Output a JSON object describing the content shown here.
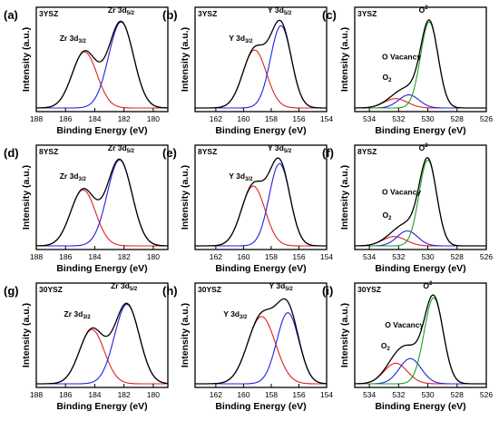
{
  "chart_data": [
    {
      "panel": "(a)",
      "sample": "3YSZ",
      "type": "line",
      "xlabel": "Binding Energy (eV)",
      "ylabel": "Intensity (a.u.)",
      "xlim": [
        188,
        179
      ],
      "xticks": [
        188,
        186,
        184,
        182,
        180
      ],
      "series": [
        {
          "name": "Zr 3d3/2",
          "color": "#e02020",
          "peaks": [
            {
              "center": 184.7,
              "sigma": 0.85,
              "height": 0.6
            }
          ]
        },
        {
          "name": "Zr 3d5/2",
          "color": "#2020e0",
          "peaks": [
            {
              "center": 182.2,
              "sigma": 0.85,
              "height": 0.92
            }
          ]
        },
        {
          "name": "",
          "color": "#000000",
          "sum": true
        }
      ],
      "annotations": [
        {
          "name": "Zr 3d",
          "sub": "3/2",
          "x": 185.5,
          "y": 0.72
        },
        {
          "name": "Zr 3d",
          "sub": "5/2",
          "x": 182.2,
          "y": 1.02
        }
      ]
    },
    {
      "panel": "(b)",
      "sample": "3YSZ",
      "type": "line",
      "xlabel": "Binding Energy (eV)",
      "ylabel": "Intensity (a.u.)",
      "xlim": [
        163.5,
        154
      ],
      "xticks": [
        162,
        160,
        158,
        156,
        154
      ],
      "series": [
        {
          "name": "Y 3d3/2",
          "color": "#e02020",
          "peaks": [
            {
              "center": 159.2,
              "sigma": 0.85,
              "height": 0.62
            }
          ]
        },
        {
          "name": "Y 3d5/2",
          "color": "#2020e0",
          "peaks": [
            {
              "center": 157.3,
              "sigma": 0.75,
              "height": 0.88
            }
          ]
        },
        {
          "name": "",
          "color": "#000000",
          "sum": true
        }
      ],
      "annotations": [
        {
          "name": "Y 3d",
          "sub": "3/2",
          "x": 160.2,
          "y": 0.72
        },
        {
          "name": "Y 3d",
          "sub": "5/2",
          "x": 157.4,
          "y": 1.02
        }
      ]
    },
    {
      "panel": "(c)",
      "sample": "3YSZ",
      "type": "line",
      "xlabel": "Binding Energy (eV)",
      "ylabel": "Intensity (a.u.)",
      "xlim": [
        535,
        526
      ],
      "xticks": [
        534,
        532,
        530,
        528,
        526
      ],
      "series": [
        {
          "name": "O2",
          "color": "#e02020",
          "peaks": [
            {
              "center": 532.2,
              "sigma": 0.8,
              "height": 0.1
            }
          ]
        },
        {
          "name": "O Vacancy",
          "color": "#2020e0",
          "peaks": [
            {
              "center": 531.3,
              "sigma": 0.7,
              "height": 0.14
            }
          ]
        },
        {
          "name": "O2-",
          "color": "#20a020",
          "peaks": [
            {
              "center": 529.9,
              "sigma": 0.6,
              "height": 0.92
            }
          ]
        },
        {
          "name": "",
          "color": "#000000",
          "sum": true
        }
      ],
      "annotations": [
        {
          "name": "O",
          "sup": "2−",
          "x": 530.2,
          "y": 1.02
        },
        {
          "name": "O Vacancy",
          "x": 531.8,
          "y": 0.52
        },
        {
          "name": "O",
          "sub": "2",
          "x": 532.8,
          "y": 0.3
        }
      ]
    },
    {
      "panel": "(d)",
      "sample": "8YSZ",
      "type": "line",
      "xlabel": "Binding Energy (eV)",
      "ylabel": "Intensity (a.u.)",
      "xlim": [
        188,
        179
      ],
      "xticks": [
        188,
        186,
        184,
        182,
        180
      ],
      "series": [
        {
          "name": "Zr 3d3/2",
          "color": "#e02020",
          "peaks": [
            {
              "center": 184.8,
              "sigma": 0.85,
              "height": 0.6
            }
          ]
        },
        {
          "name": "Zr 3d5/2",
          "color": "#2020e0",
          "peaks": [
            {
              "center": 182.3,
              "sigma": 0.85,
              "height": 0.92
            }
          ]
        },
        {
          "name": "",
          "color": "#000000",
          "sum": true
        }
      ],
      "annotations": [
        {
          "name": "Zr 3d",
          "sub": "3/2",
          "x": 185.5,
          "y": 0.72
        },
        {
          "name": "Zr 3d",
          "sub": "5/2",
          "x": 182.2,
          "y": 1.02
        }
      ]
    },
    {
      "panel": "(e)",
      "sample": "8YSZ",
      "type": "line",
      "xlabel": "Binding Energy (eV)",
      "ylabel": "Intensity (a.u.)",
      "xlim": [
        163.5,
        154
      ],
      "xticks": [
        162,
        160,
        158,
        156,
        154
      ],
      "series": [
        {
          "name": "Y 3d3/2",
          "color": "#e02020",
          "peaks": [
            {
              "center": 159.3,
              "sigma": 0.85,
              "height": 0.64
            }
          ]
        },
        {
          "name": "Y 3d5/2",
          "color": "#2020e0",
          "peaks": [
            {
              "center": 157.4,
              "sigma": 0.75,
              "height": 0.88
            }
          ]
        },
        {
          "name": "",
          "color": "#000000",
          "sum": true
        }
      ],
      "annotations": [
        {
          "name": "Y 3d",
          "sub": "3/2",
          "x": 160.2,
          "y": 0.72
        },
        {
          "name": "Y 3d",
          "sub": "5/2",
          "x": 157.4,
          "y": 1.02
        }
      ]
    },
    {
      "panel": "(f)",
      "sample": "8YSZ",
      "type": "line",
      "xlabel": "Binding Energy (eV)",
      "ylabel": "Intensity (a.u.)",
      "xlim": [
        535,
        526
      ],
      "xticks": [
        534,
        532,
        530,
        528,
        526
      ],
      "series": [
        {
          "name": "O2",
          "color": "#e02020",
          "peaks": [
            {
              "center": 532.3,
              "sigma": 0.8,
              "height": 0.1
            }
          ]
        },
        {
          "name": "O Vacancy",
          "color": "#2020e0",
          "peaks": [
            {
              "center": 531.4,
              "sigma": 0.7,
              "height": 0.16
            }
          ]
        },
        {
          "name": "O2-",
          "color": "#20a020",
          "peaks": [
            {
              "center": 530.0,
              "sigma": 0.6,
              "height": 0.92
            }
          ]
        },
        {
          "name": "",
          "color": "#000000",
          "sum": true
        }
      ],
      "annotations": [
        {
          "name": "O",
          "sup": "2−",
          "x": 530.2,
          "y": 1.02
        },
        {
          "name": "O Vacancy",
          "x": 531.8,
          "y": 0.55
        },
        {
          "name": "O",
          "sub": "2",
          "x": 532.8,
          "y": 0.3
        }
      ]
    },
    {
      "panel": "(g)",
      "sample": "30YSZ",
      "type": "line",
      "xlabel": "Binding Energy (eV)",
      "ylabel": "Intensity (a.u.)",
      "xlim": [
        188,
        179
      ],
      "xticks": [
        188,
        186,
        184,
        182,
        180
      ],
      "series": [
        {
          "name": "Zr 3d3/2",
          "color": "#e02020",
          "peaks": [
            {
              "center": 184.2,
              "sigma": 0.85,
              "height": 0.58
            }
          ]
        },
        {
          "name": "Zr 3d5/2",
          "color": "#2020e0",
          "peaks": [
            {
              "center": 181.8,
              "sigma": 0.85,
              "height": 0.85
            }
          ]
        },
        {
          "name": "",
          "color": "#000000",
          "sum": true
        }
      ],
      "annotations": [
        {
          "name": "Zr 3d",
          "sub": "3/2",
          "x": 185.2,
          "y": 0.72
        },
        {
          "name": "Zr 3d",
          "sub": "5/2",
          "x": 182.0,
          "y": 1.02
        }
      ]
    },
    {
      "panel": "(h)",
      "sample": "30YSZ",
      "type": "line",
      "xlabel": "Binding Energy (eV)",
      "ylabel": "Intensity (a.u.)",
      "xlim": [
        163.5,
        154
      ],
      "xticks": [
        162,
        160,
        158,
        156,
        154
      ],
      "series": [
        {
          "name": "Y 3d3/2",
          "color": "#e02020",
          "peaks": [
            {
              "center": 158.7,
              "sigma": 1.0,
              "height": 0.72
            }
          ]
        },
        {
          "name": "Y 3d5/2",
          "color": "#2020e0",
          "peaks": [
            {
              "center": 156.8,
              "sigma": 0.8,
              "height": 0.76
            }
          ]
        },
        {
          "name": "",
          "color": "#000000",
          "sum": true
        }
      ],
      "annotations": [
        {
          "name": "Y 3d",
          "sub": "3/2",
          "x": 160.6,
          "y": 0.72
        },
        {
          "name": "Y 3d",
          "sub": "5/2",
          "x": 157.3,
          "y": 1.02
        }
      ]
    },
    {
      "panel": "(i)",
      "sample": "30YSZ",
      "type": "line",
      "xlabel": "Binding Energy (eV)",
      "ylabel": "Intensity (a.u.)",
      "xlim": [
        535,
        526
      ],
      "xticks": [
        534,
        532,
        530,
        528,
        526
      ],
      "series": [
        {
          "name": "O2",
          "color": "#e02020",
          "peaks": [
            {
              "center": 532.2,
              "sigma": 0.8,
              "height": 0.22
            }
          ]
        },
        {
          "name": "O Vacancy",
          "color": "#2020e0",
          "peaks": [
            {
              "center": 531.2,
              "sigma": 0.75,
              "height": 0.27
            }
          ]
        },
        {
          "name": "O2-",
          "color": "#20a020",
          "peaks": [
            {
              "center": 529.6,
              "sigma": 0.65,
              "height": 0.92
            }
          ]
        },
        {
          "name": "",
          "color": "#000000",
          "sum": true
        }
      ],
      "annotations": [
        {
          "name": "O",
          "sup": "2−",
          "x": 529.9,
          "y": 1.02
        },
        {
          "name": "O Vacancy",
          "x": 531.6,
          "y": 0.6
        },
        {
          "name": "O",
          "sub": "2",
          "x": 532.9,
          "y": 0.38
        }
      ]
    }
  ]
}
